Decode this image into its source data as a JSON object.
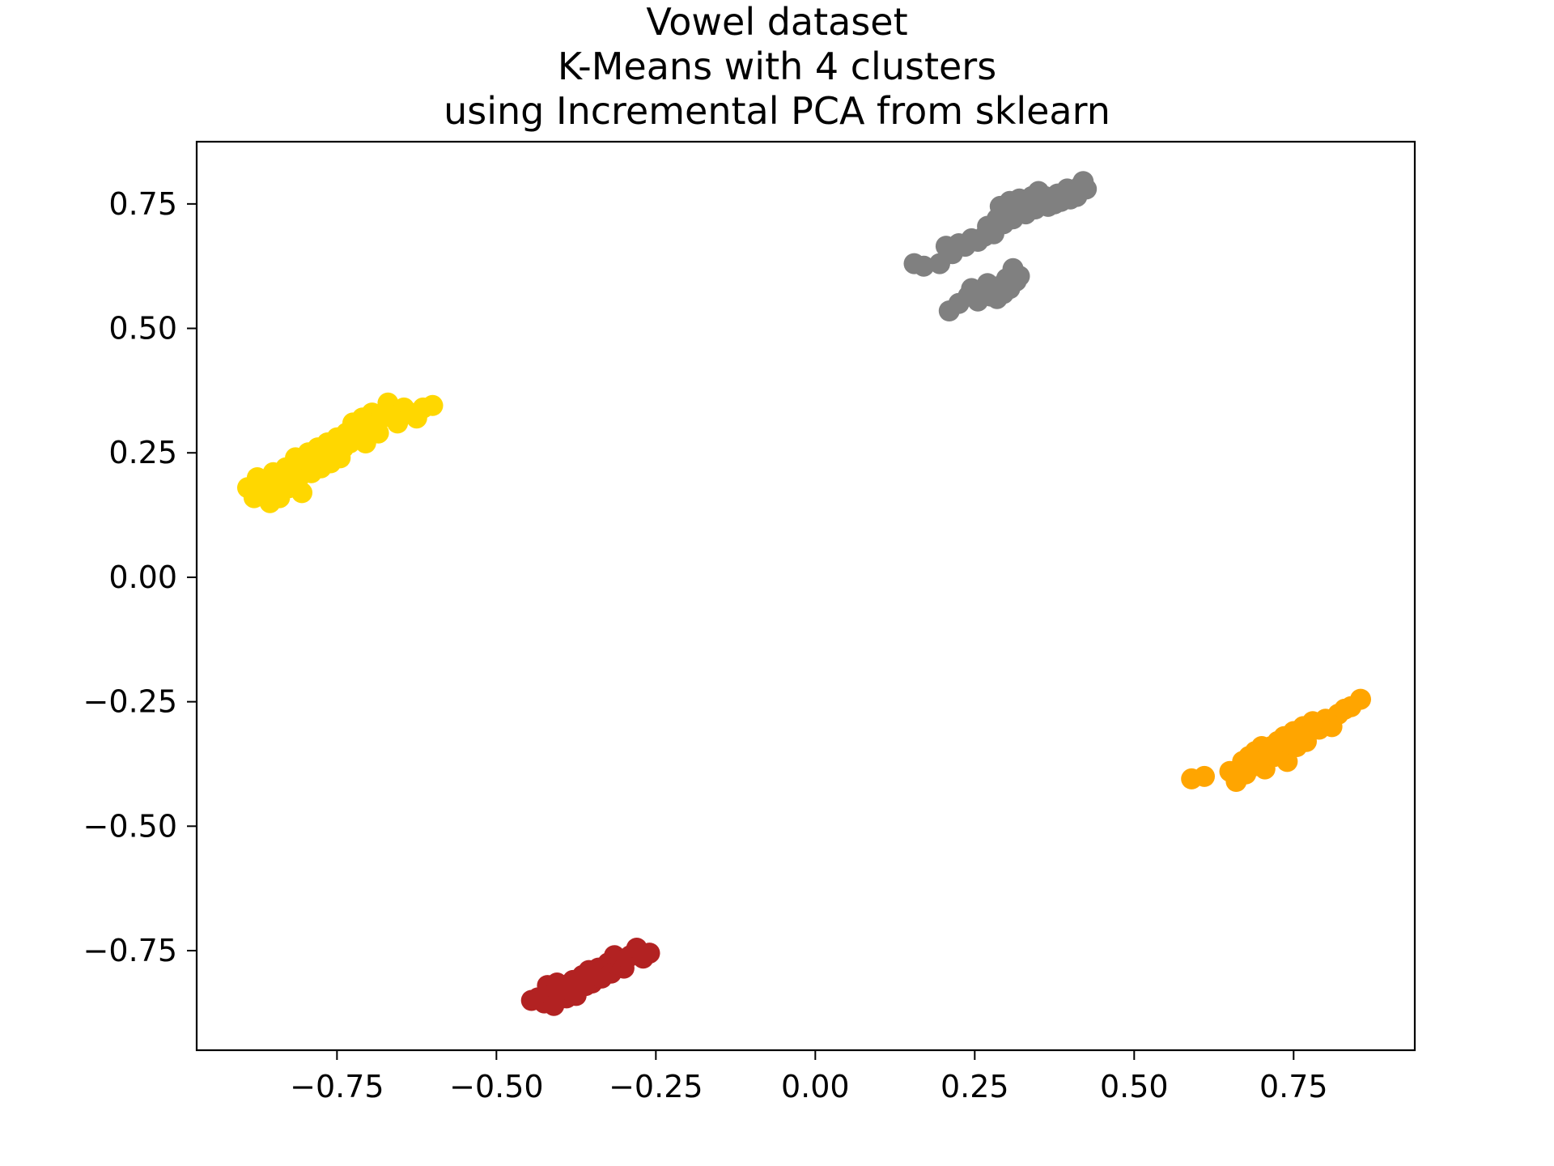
{
  "chart_data": {
    "type": "scatter",
    "title_lines": [
      "Vowel dataset",
      "K-Means with 4 clusters",
      "using Incremental PCA from sklearn"
    ],
    "xlabel": "",
    "ylabel": "",
    "xlim": [
      -0.97,
      0.94
    ],
    "ylim": [
      -0.95,
      0.875
    ],
    "x_ticks": [
      -0.75,
      -0.5,
      -0.25,
      0.0,
      0.25,
      0.5,
      0.75
    ],
    "x_tick_labels": [
      "−0.75",
      "−0.50",
      "−0.25",
      "0.00",
      "0.25",
      "0.50",
      "0.75"
    ],
    "y_ticks": [
      0.75,
      0.5,
      0.25,
      0.0,
      -0.25,
      -0.5,
      -0.75
    ],
    "y_tick_labels": [
      "0.75",
      "0.50",
      "0.25",
      "0.00",
      "−0.25",
      "−0.50",
      "−0.75"
    ],
    "grid": false,
    "legend": false,
    "series": [
      {
        "color": "#FFD700",
        "points": [
          [
            -0.89,
            0.18
          ],
          [
            -0.88,
            0.16
          ],
          [
            -0.875,
            0.2
          ],
          [
            -0.865,
            0.17
          ],
          [
            -0.86,
            0.19
          ],
          [
            -0.855,
            0.15
          ],
          [
            -0.85,
            0.21
          ],
          [
            -0.845,
            0.18
          ],
          [
            -0.84,
            0.16
          ],
          [
            -0.835,
            0.2
          ],
          [
            -0.83,
            0.22
          ],
          [
            -0.825,
            0.18
          ],
          [
            -0.82,
            0.19
          ],
          [
            -0.815,
            0.24
          ],
          [
            -0.81,
            0.2
          ],
          [
            -0.805,
            0.17
          ],
          [
            -0.8,
            0.22
          ],
          [
            -0.795,
            0.25
          ],
          [
            -0.79,
            0.21
          ],
          [
            -0.785,
            0.23
          ],
          [
            -0.78,
            0.26
          ],
          [
            -0.775,
            0.22
          ],
          [
            -0.77,
            0.24
          ],
          [
            -0.765,
            0.27
          ],
          [
            -0.76,
            0.23
          ],
          [
            -0.755,
            0.25
          ],
          [
            -0.75,
            0.28
          ],
          [
            -0.745,
            0.24
          ],
          [
            -0.74,
            0.26
          ],
          [
            -0.735,
            0.29
          ],
          [
            -0.73,
            0.27
          ],
          [
            -0.725,
            0.31
          ],
          [
            -0.72,
            0.28
          ],
          [
            -0.715,
            0.3
          ],
          [
            -0.71,
            0.32
          ],
          [
            -0.705,
            0.27
          ],
          [
            -0.7,
            0.3
          ],
          [
            -0.695,
            0.33
          ],
          [
            -0.69,
            0.31
          ],
          [
            -0.685,
            0.29
          ],
          [
            -0.68,
            0.32
          ],
          [
            -0.67,
            0.35
          ],
          [
            -0.665,
            0.33
          ],
          [
            -0.655,
            0.31
          ],
          [
            -0.645,
            0.34
          ],
          [
            -0.635,
            0.33
          ],
          [
            -0.625,
            0.32
          ],
          [
            -0.615,
            0.34
          ],
          [
            -0.6,
            0.345
          ]
        ]
      },
      {
        "color": "#808080",
        "points": [
          [
            0.155,
            0.63
          ],
          [
            0.17,
            0.625
          ],
          [
            0.195,
            0.63
          ],
          [
            0.205,
            0.665
          ],
          [
            0.215,
            0.65
          ],
          [
            0.225,
            0.67
          ],
          [
            0.235,
            0.665
          ],
          [
            0.245,
            0.68
          ],
          [
            0.255,
            0.675
          ],
          [
            0.265,
            0.685
          ],
          [
            0.27,
            0.705
          ],
          [
            0.28,
            0.69
          ],
          [
            0.285,
            0.72
          ],
          [
            0.29,
            0.745
          ],
          [
            0.295,
            0.71
          ],
          [
            0.3,
            0.73
          ],
          [
            0.305,
            0.755
          ],
          [
            0.31,
            0.72
          ],
          [
            0.315,
            0.74
          ],
          [
            0.32,
            0.76
          ],
          [
            0.325,
            0.745
          ],
          [
            0.33,
            0.73
          ],
          [
            0.335,
            0.755
          ],
          [
            0.34,
            0.765
          ],
          [
            0.345,
            0.74
          ],
          [
            0.35,
            0.775
          ],
          [
            0.355,
            0.75
          ],
          [
            0.36,
            0.765
          ],
          [
            0.365,
            0.745
          ],
          [
            0.37,
            0.76
          ],
          [
            0.375,
            0.75
          ],
          [
            0.38,
            0.77
          ],
          [
            0.385,
            0.755
          ],
          [
            0.39,
            0.765
          ],
          [
            0.395,
            0.78
          ],
          [
            0.4,
            0.76
          ],
          [
            0.405,
            0.775
          ],
          [
            0.41,
            0.765
          ],
          [
            0.415,
            0.785
          ],
          [
            0.42,
            0.795
          ],
          [
            0.425,
            0.78
          ],
          [
            0.21,
            0.535
          ],
          [
            0.225,
            0.55
          ],
          [
            0.24,
            0.565
          ],
          [
            0.245,
            0.58
          ],
          [
            0.255,
            0.555
          ],
          [
            0.26,
            0.575
          ],
          [
            0.27,
            0.59
          ],
          [
            0.275,
            0.565
          ],
          [
            0.285,
            0.56
          ],
          [
            0.29,
            0.585
          ],
          [
            0.295,
            0.57
          ],
          [
            0.3,
            0.6
          ],
          [
            0.305,
            0.58
          ],
          [
            0.31,
            0.62
          ],
          [
            0.315,
            0.595
          ],
          [
            0.32,
            0.605
          ]
        ]
      },
      {
        "color": "#FFA500",
        "points": [
          [
            0.59,
            -0.405
          ],
          [
            0.61,
            -0.4
          ],
          [
            0.65,
            -0.39
          ],
          [
            0.66,
            -0.41
          ],
          [
            0.67,
            -0.37
          ],
          [
            0.675,
            -0.395
          ],
          [
            0.68,
            -0.36
          ],
          [
            0.685,
            -0.38
          ],
          [
            0.69,
            -0.35
          ],
          [
            0.695,
            -0.37
          ],
          [
            0.7,
            -0.34
          ],
          [
            0.705,
            -0.385
          ],
          [
            0.71,
            -0.355
          ],
          [
            0.715,
            -0.34
          ],
          [
            0.72,
            -0.36
          ],
          [
            0.725,
            -0.33
          ],
          [
            0.73,
            -0.35
          ],
          [
            0.735,
            -0.32
          ],
          [
            0.74,
            -0.37
          ],
          [
            0.745,
            -0.335
          ],
          [
            0.75,
            -0.31
          ],
          [
            0.755,
            -0.34
          ],
          [
            0.76,
            -0.32
          ],
          [
            0.765,
            -0.3
          ],
          [
            0.77,
            -0.33
          ],
          [
            0.775,
            -0.31
          ],
          [
            0.78,
            -0.29
          ],
          [
            0.79,
            -0.305
          ],
          [
            0.8,
            -0.285
          ],
          [
            0.81,
            -0.3
          ],
          [
            0.82,
            -0.275
          ],
          [
            0.83,
            -0.265
          ],
          [
            0.84,
            -0.26
          ],
          [
            0.855,
            -0.245
          ]
        ]
      },
      {
        "color": "#B22222",
        "points": [
          [
            -0.445,
            -0.85
          ],
          [
            -0.435,
            -0.845
          ],
          [
            -0.425,
            -0.855
          ],
          [
            -0.42,
            -0.82
          ],
          [
            -0.415,
            -0.84
          ],
          [
            -0.41,
            -0.86
          ],
          [
            -0.405,
            -0.815
          ],
          [
            -0.4,
            -0.835
          ],
          [
            -0.395,
            -0.82
          ],
          [
            -0.39,
            -0.845
          ],
          [
            -0.385,
            -0.83
          ],
          [
            -0.38,
            -0.81
          ],
          [
            -0.375,
            -0.84
          ],
          [
            -0.37,
            -0.825
          ],
          [
            -0.365,
            -0.8
          ],
          [
            -0.36,
            -0.82
          ],
          [
            -0.355,
            -0.79
          ],
          [
            -0.35,
            -0.815
          ],
          [
            -0.345,
            -0.8
          ],
          [
            -0.34,
            -0.785
          ],
          [
            -0.335,
            -0.805
          ],
          [
            -0.33,
            -0.79
          ],
          [
            -0.325,
            -0.775
          ],
          [
            -0.32,
            -0.795
          ],
          [
            -0.315,
            -0.76
          ],
          [
            -0.31,
            -0.78
          ],
          [
            -0.305,
            -0.77
          ],
          [
            -0.3,
            -0.785
          ],
          [
            -0.295,
            -0.765
          ],
          [
            -0.29,
            -0.76
          ],
          [
            -0.28,
            -0.745
          ],
          [
            -0.27,
            -0.765
          ],
          [
            -0.26,
            -0.755
          ]
        ]
      }
    ]
  }
}
